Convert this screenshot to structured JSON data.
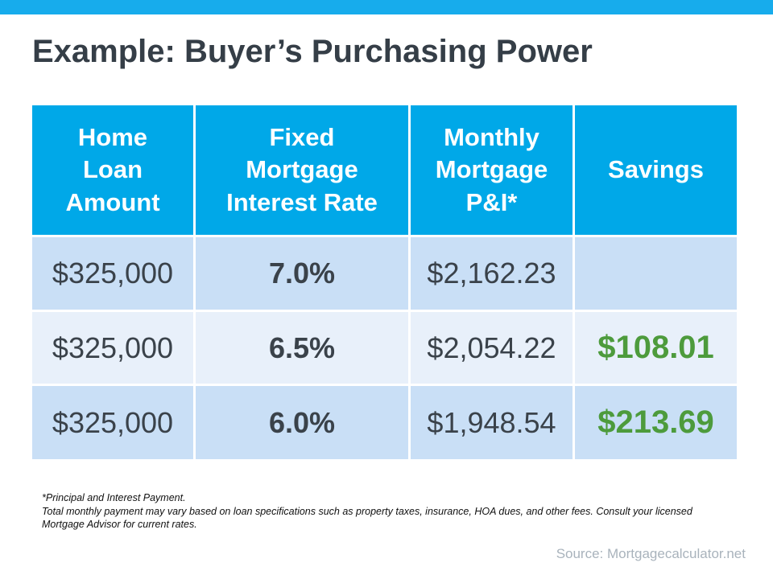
{
  "title": "Example: Buyer’s Purchasing Power",
  "table": {
    "headers": [
      "Home\nLoan\nAmount",
      "Fixed\nMortgage\nInterest Rate",
      "Monthly\nMortgage\nP&I*",
      "Savings"
    ],
    "rows": [
      {
        "loan": "$325,000",
        "rate": "7.0%",
        "payment": "$2,162.23",
        "savings": ""
      },
      {
        "loan": "$325,000",
        "rate": "6.5%",
        "payment": "$2,054.22",
        "savings": "$108.01"
      },
      {
        "loan": "$325,000",
        "rate": "6.0%",
        "payment": "$1,948.54",
        "savings": "$213.69"
      }
    ]
  },
  "footnote": {
    "line1": "*Principal and Interest Payment.",
    "line2": "Total monthly payment may vary based on loan specifications such as property taxes, insurance, HOA dues, and other fees. Consult your licensed Mortgage Advisor for current rates."
  },
  "source": "Source: Mortgagecalculator.net",
  "colors": {
    "accent_bar": "#17ACEC",
    "header_bg": "#00A8E8",
    "row_blue": "#C9DFF6",
    "row_light_blue": "#E8F0FA",
    "savings_green": "#4D9B3C",
    "title_text": "#353E47",
    "cell_text": "#3A424A",
    "source_text": "#A9B3BC"
  }
}
